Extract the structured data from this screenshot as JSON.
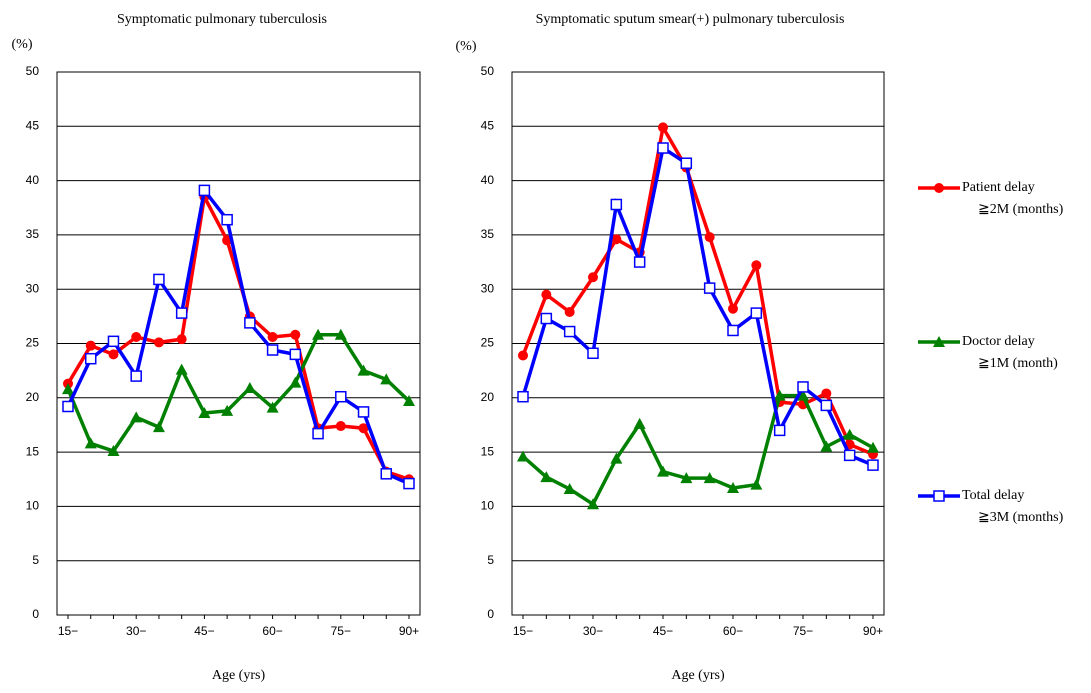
{
  "chart_data": [
    {
      "type": "line",
      "title": "Symptomatic pulmonary tuberculosis",
      "ylabel": "(%)",
      "xlabel": "Age (yrs)",
      "categories": [
        "15−",
        null,
        null,
        "30−",
        null,
        null,
        "45−",
        null,
        null,
        "60−",
        null,
        null,
        "75−",
        null,
        null,
        "90+"
      ],
      "ylim": [
        0,
        50
      ],
      "yticks": [
        0,
        5,
        10,
        15,
        20,
        25,
        30,
        35,
        40,
        45,
        50
      ],
      "grid": true,
      "series": [
        {
          "name": "Patient delay",
          "note": "≧2M (months)",
          "color": "#ff0000",
          "marker": "circle",
          "values": [
            21.3,
            24.8,
            24.0,
            25.6,
            25.1,
            25.4,
            38.5,
            34.5,
            27.5,
            25.6,
            25.8,
            17.2,
            17.4,
            17.2,
            13.2,
            12.5
          ]
        },
        {
          "name": "Doctor delay",
          "note": "≧1M (month)",
          "color": "#008000",
          "marker": "triangle",
          "values": [
            20.8,
            15.8,
            15.1,
            18.2,
            17.3,
            22.6,
            18.6,
            18.8,
            20.9,
            19.1,
            21.4,
            25.8,
            25.8,
            22.5,
            21.7,
            19.7
          ]
        },
        {
          "name": "Total delay",
          "note": "≧3M (months)",
          "color": "#0000ff",
          "marker": "square",
          "values": [
            19.2,
            23.6,
            25.2,
            22.0,
            30.9,
            27.8,
            39.1,
            36.4,
            26.9,
            24.4,
            24.0,
            16.7,
            20.1,
            18.7,
            13.0,
            12.1
          ]
        }
      ]
    },
    {
      "type": "line",
      "title": "Symptomatic sputum smear(+) pulmonary tuberculosis",
      "ylabel": "(%)",
      "xlabel": "Age (yrs)",
      "categories": [
        "15−",
        null,
        null,
        "30−",
        null,
        null,
        "45−",
        null,
        null,
        "60−",
        null,
        null,
        "75−",
        null,
        null,
        "90+"
      ],
      "ylim": [
        0,
        50
      ],
      "yticks": [
        0,
        5,
        10,
        15,
        20,
        25,
        30,
        35,
        40,
        45,
        50
      ],
      "grid": true,
      "series": [
        {
          "name": "Patient delay",
          "note": "≧2M (months)",
          "color": "#ff0000",
          "marker": "circle",
          "values": [
            23.9,
            29.5,
            27.9,
            31.1,
            34.6,
            33.4,
            44.9,
            41.2,
            34.8,
            28.2,
            32.2,
            19.6,
            19.4,
            20.4,
            15.7,
            14.8
          ]
        },
        {
          "name": "Doctor delay",
          "note": "≧1M (month)",
          "color": "#008000",
          "marker": "triangle",
          "values": [
            14.6,
            12.7,
            11.6,
            10.2,
            14.4,
            17.6,
            13.2,
            12.6,
            12.6,
            11.7,
            12.0,
            20.2,
            20.2,
            15.5,
            16.6,
            15.4
          ]
        },
        {
          "name": "Total delay",
          "note": "≧3M (months)",
          "color": "#0000ff",
          "marker": "square",
          "values": [
            20.1,
            27.3,
            26.1,
            24.1,
            37.8,
            32.5,
            43.0,
            41.6,
            30.1,
            26.2,
            27.8,
            17.0,
            21.0,
            19.3,
            14.7,
            13.8
          ]
        }
      ]
    }
  ]
}
